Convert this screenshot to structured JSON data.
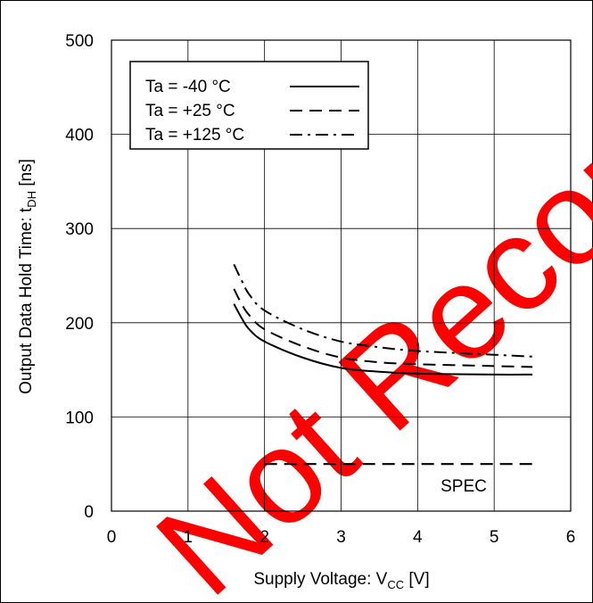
{
  "chart_data": {
    "type": "line",
    "xlabel": {
      "main": "Supply Voltage: V",
      "sub": "CC",
      "unit": " [V]"
    },
    "ylabel": {
      "main": "Output Data Hold Time: t",
      "sub": "DH",
      "unit": " [ns]"
    },
    "xlim": [
      0,
      6
    ],
    "ylim": [
      0,
      500
    ],
    "x_ticks": [
      0,
      1,
      2,
      3,
      4,
      5,
      6
    ],
    "y_ticks": [
      0,
      100,
      200,
      300,
      400,
      500
    ],
    "grid": true,
    "legend_position": "top-left",
    "series": [
      {
        "name": "Ta = -40 °C",
        "style": "solid",
        "x": [
          1.6,
          1.7,
          1.8,
          2.0,
          2.5,
          3.0,
          3.5,
          4.0,
          5.0,
          5.5
        ],
        "y": [
          220,
          205,
          193,
          180,
          163,
          152,
          148,
          146,
          145,
          145
        ]
      },
      {
        "name": "Ta = +25 °C",
        "style": "dashed",
        "x": [
          1.6,
          1.7,
          1.8,
          2.0,
          2.5,
          3.0,
          3.5,
          4.0,
          5.0,
          5.5
        ],
        "y": [
          236,
          220,
          208,
          193,
          175,
          163,
          158,
          156,
          154,
          153
        ]
      },
      {
        "name": "Ta = +125 °C",
        "style": "dashdot",
        "x": [
          1.6,
          1.7,
          1.8,
          2.0,
          2.5,
          3.0,
          3.5,
          4.0,
          5.0,
          5.5
        ],
        "y": [
          262,
          245,
          230,
          213,
          193,
          180,
          174,
          170,
          166,
          164
        ]
      }
    ],
    "spec": {
      "label": "SPEC",
      "x": [
        2.0,
        5.5
      ],
      "y": 50
    },
    "colors": {
      "line": "#000000",
      "grid": "#000000",
      "watermark": "#ff0000"
    }
  },
  "watermark": {
    "text": "Not Recommended for New Designs"
  }
}
